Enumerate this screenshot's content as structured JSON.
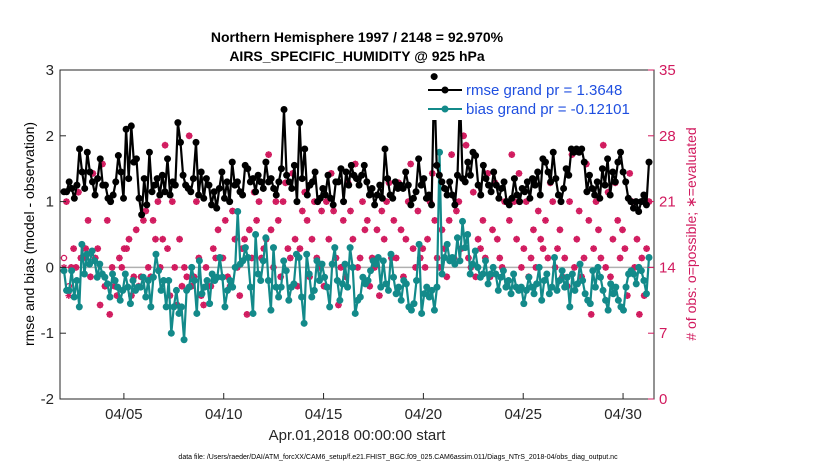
{
  "chart_data": {
    "type": "line",
    "title": "Northern Hemisphere 1997 / 2148 = 92.970%",
    "subtitle": "AIRS_SPECIFIC_HUMIDITY @ 925 hPa",
    "xlabel": "Apr.01,2018 00:00:00 start",
    "ylabel": "rmse and bias (model - observation)",
    "y2label": "# of obs: o=possible; ∗=evaluated",
    "xlim": [
      0.8,
      30.55
    ],
    "ylim": [
      -2,
      3
    ],
    "y2lim": [
      0,
      35
    ],
    "xticks": [
      4,
      9,
      14,
      19,
      24,
      29
    ],
    "xtick_labels": [
      "04/05",
      "04/10",
      "04/15",
      "04/20",
      "04/25",
      "04/30"
    ],
    "yticks": [
      -2,
      -1,
      0,
      1,
      2,
      3
    ],
    "y2ticks": [
      0,
      7,
      14,
      21,
      28,
      35
    ],
    "reference_line": 0,
    "footer": "data file: /Users/raeder/DAI/ATM_forcXX/CAM6_setup/f.e21.FHIST_BGC.f09_025.CAM6assim.011/Diags_NTrS_2018-04/obs_diag_output.nc",
    "series": [
      {
        "name": "rmse",
        "legend_label": "rmse grand pr = 1.3648",
        "color": "#000000",
        "axis": "left",
        "values": [
          1.15,
          1.15,
          1.3,
          1.2,
          1.05,
          1.25,
          1.8,
          1.45,
          1.2,
          1.75,
          1.45,
          1.3,
          1.1,
          1.35,
          1.65,
          1.25,
          1.25,
          1.05,
          1.0,
          1.1,
          1.3,
          1.7,
          1.45,
          1.05,
          2.1,
          1.35,
          2.15,
          1.6,
          1.65,
          1.05,
          0.8,
          1.35,
          0.95,
          1.75,
          1.15,
          1.25,
          1.35,
          1.1,
          1.4,
          1.15,
          1.65,
          1.1,
          1.3,
          1.25,
          2.2,
          1.9,
          1.4,
          1.25,
          1.2,
          1.15,
          1.35,
          1.9,
          1.1,
          1.45,
          1.05,
          1.35,
          1.25,
          0.95,
          1.15,
          0.9,
          1.2,
          1.45,
          1.05,
          1.3,
          1.0,
          1.6,
          1.25,
          1.3,
          1.15,
          1.1,
          1.55,
          1.5,
          1.3,
          1.35,
          1.15,
          1.4,
          1.3,
          1.2,
          1.6,
          1.3,
          1.35,
          1.2,
          1.1,
          1.3,
          1.5,
          2.4,
          1.4,
          1.3,
          1.2,
          1.55,
          1.0,
          2.2,
          1.35,
          1.8,
          1.1,
          1.25,
          1.3,
          1.45,
          1.0,
          1.05,
          1.2,
          1.1,
          1.4,
          1.05,
          0.95,
          1.3,
          1.3,
          1.5,
          1.0,
          1.45,
          1.25,
          1.55,
          1.4,
          1.35,
          1.25,
          1.4,
          1.55,
          1.3,
          1.1,
          1.2,
          0.95,
          1.1,
          1.25,
          1.05,
          1.8,
          1.35,
          1.1,
          1.05,
          1.3,
          1.2,
          1.25,
          1.2,
          1.45,
          1.25,
          0.95,
          1.05,
          1.15,
          1.65,
          1.25,
          1.35,
          1.05,
          1.1,
          0.95,
          2.9,
          1.55,
          1.4,
          1.3,
          1.2,
          1.1,
          1.3,
          1.1,
          0.95,
          1.4,
          2.6,
          1.35,
          1.3,
          1.6,
          1.4,
          1.75,
          1.7,
          1.25,
          1.1,
          1.55,
          1.35,
          1.25,
          1.15,
          1.45,
          1.25,
          1.05,
          1.2,
          1.3,
          1.0,
          0.95,
          1.05,
          1.35,
          1.1,
          1.0,
          1.2,
          1.15,
          1.3,
          1.05,
          1.35,
          1.25,
          1.45,
          1.1,
          1.65,
          1.6,
          1.45,
          1.3,
          1.75,
          1.35,
          1.1,
          1.0,
          1.2,
          1.5,
          1.4,
          1.8,
          1.75,
          1.8,
          1.75,
          1.8,
          1.6,
          1.15,
          1.4,
          1.2,
          1.1,
          1.3,
          1.05,
          1.5,
          1.25,
          1.65,
          1.1,
          1.45,
          1.3,
          1.6,
          1.75,
          1.45,
          1.3,
          1.05,
          1.0,
          0.9,
          1.0,
          0.85,
          1.0,
          1.1,
          0.95,
          1.6
        ]
      },
      {
        "name": "bias",
        "legend_label": "bias grand pr = -0.12101",
        "color": "#138a8a",
        "axis": "left",
        "values": [
          -0.05,
          -0.35,
          -0.35,
          -0.05,
          -0.45,
          -0.2,
          -0.6,
          0.35,
          -0.1,
          0.2,
          0.05,
          0.25,
          0.1,
          -0.15,
          0.05,
          -0.1,
          -0.15,
          -0.25,
          -0.45,
          -0.1,
          -0.2,
          -0.3,
          -0.5,
          -0.35,
          -0.1,
          -0.3,
          -0.55,
          -0.2,
          -0.35,
          -0.3,
          -0.3,
          -0.15,
          -0.45,
          -0.2,
          -0.6,
          -0.15,
          0.2,
          -0.05,
          -0.35,
          -0.2,
          -0.6,
          -0.2,
          -1.0,
          -0.6,
          -0.35,
          -0.7,
          -0.6,
          -1.1,
          -0.35,
          -0.3,
          0.0,
          -0.2,
          -0.7,
          0.1,
          -0.4,
          -0.3,
          -0.2,
          -0.55,
          -0.1,
          -0.2,
          -0.15,
          0.15,
          -0.15,
          -0.6,
          -0.35,
          -0.2,
          -0.3,
          0.0,
          0.85,
          0.05,
          0.1,
          0.3,
          0.15,
          -0.3,
          -0.7,
          0.5,
          -0.1,
          -0.2,
          0.1,
          0.45,
          -0.2,
          -0.65,
          0.3,
          -0.3,
          -0.45,
          -0.3,
          0.1,
          -0.05,
          -0.5,
          -0.3,
          -0.25,
          0.2,
          0.15,
          -0.45,
          -0.85,
          0.2,
          -0.1,
          -0.45,
          -0.35,
          0.1,
          -0.2,
          0.05,
          -0.15,
          -0.3,
          -0.6,
          0.05,
          0.3,
          -0.2,
          -0.5,
          -0.25,
          0.05,
          -0.3,
          0.3,
          0.0,
          -0.7,
          -0.5,
          -0.45,
          -0.15,
          -0.25,
          -0.2,
          -0.05,
          0.1,
          0.05,
          0.15,
          -0.3,
          0.1,
          -0.25,
          -0.35,
          0.2,
          -0.15,
          -0.4,
          -0.3,
          -0.5,
          -0.2,
          -0.25,
          -0.6,
          -0.65,
          -0.55,
          -0.2,
          0.35,
          -0.7,
          -0.4,
          -0.3,
          -0.45,
          -0.35,
          -0.65,
          -0.3,
          1.75,
          -0.1,
          0.15,
          0.35,
          0.1,
          0.15,
          0.05,
          0.45,
          0.1,
          0.7,
          0.3,
          0.5,
          -0.1,
          0.05,
          0.25,
          0.0,
          -0.15,
          -0.1,
          0.1,
          -0.25,
          -0.1,
          0.0,
          -0.1,
          -0.35,
          -0.15,
          -0.05,
          -0.3,
          -0.2,
          -0.4,
          -0.1,
          -0.3,
          -0.35,
          -0.3,
          -0.55,
          -0.35,
          -0.15,
          -0.3,
          -0.4,
          -0.25,
          0.0,
          -0.5,
          -0.2,
          -0.1,
          -0.4,
          -0.3,
          0.15,
          -0.35,
          -0.2,
          -0.05,
          -0.3,
          -0.15,
          -0.6,
          -0.1,
          -0.35,
          -0.25,
          0.05,
          -0.2,
          -0.4,
          -0.5,
          -0.55,
          -0.05,
          -0.3,
          0.0,
          -0.15,
          -0.35,
          -0.5,
          -0.65,
          -0.25,
          -0.4,
          -0.3,
          -0.5,
          -0.6,
          -0.65,
          -0.3,
          -0.1,
          -0.05,
          -0.1,
          -0.25,
          0.0,
          -0.05,
          -0.2,
          -0.4,
          0.15
        ]
      },
      {
        "name": "obs possible",
        "marker": "o",
        "color": "#d11a5e",
        "axis": "right",
        "values": [
          15,
          21,
          12,
          14,
          16,
          14,
          22,
          15,
          15,
          16,
          19,
          13,
          24,
          15,
          16,
          10,
          25,
          12,
          19,
          9,
          14,
          12,
          11,
          15,
          14,
          16,
          16,
          17,
          11,
          13,
          18,
          12,
          13,
          19,
          20,
          14,
          13,
          19,
          17,
          21,
          14,
          17,
          27,
          16,
          11,
          21,
          14,
          10,
          17,
          12,
          14,
          13,
          28,
          12,
          13,
          21,
          15,
          11,
          10,
          14,
          12,
          12,
          16,
          15,
          18,
          15,
          15,
          19,
          13,
          12,
          20,
          17,
          14,
          11,
          16,
          17,
          9,
          18,
          15,
          22,
          19,
          21,
          15,
          16,
          17,
          26,
          18,
          14,
          21,
          19,
          13,
          21,
          23,
          16,
          15,
          24,
          17,
          12,
          16,
          20,
          22,
          19,
          13,
          17,
          21,
          15,
          14,
          20,
          12,
          21,
          17,
          24,
          20,
          15,
          10,
          14,
          19,
          13,
          23,
          20,
          17,
          25,
          14,
          15,
          21,
          18,
          19,
          12,
          15,
          14,
          18,
          11,
          20,
          17,
          21,
          23,
          15,
          19,
          15,
          23,
          18,
          13,
          17,
          21,
          25,
          16,
          14,
          20,
          15,
          16,
          14,
          17,
          21,
          24,
          19,
          15,
          14,
          18,
          16,
          13,
          19,
          26,
          15,
          20,
          21,
          16,
          28,
          27,
          15,
          14,
          22,
          13,
          17,
          16,
          19,
          15,
          24,
          13,
          18,
          23,
          17,
          15,
          14,
          21,
          12,
          19,
          26,
          21,
          17,
          24,
          14,
          16,
          21,
          13,
          15,
          18,
          14,
          20,
          17,
          16,
          19,
          15,
          23,
          21,
          14,
          16,
          18,
          13,
          15,
          12,
          21,
          26,
          14,
          17,
          20,
          13,
          15,
          25,
          19,
          9,
          16,
          21,
          18,
          15,
          27,
          14,
          22,
          13,
          17,
          23,
          19,
          15,
          18,
          16,
          11,
          24,
          21,
          14,
          17,
          9,
          15,
          11,
          16,
          21
        ]
      },
      {
        "name": "obs evaluated",
        "marker": "*",
        "color": "#d11a5e",
        "axis": "right",
        "values": [
          14,
          21,
          11,
          14,
          16,
          14,
          22,
          15,
          15,
          16,
          19,
          13,
          24,
          15,
          16,
          10,
          25,
          12,
          19,
          9,
          14,
          12,
          11,
          15,
          14,
          16,
          16,
          17,
          11,
          13,
          18,
          12,
          13,
          19,
          20,
          14,
          13,
          19,
          17,
          21,
          14,
          17,
          27,
          16,
          11,
          21,
          14,
          10,
          17,
          12,
          14,
          13,
          28,
          12,
          13,
          21,
          15,
          11,
          10,
          14,
          12,
          12,
          16,
          15,
          18,
          15,
          15,
          19,
          13,
          12,
          20,
          17,
          14,
          11,
          16,
          17,
          9,
          18,
          15,
          22,
          19,
          21,
          15,
          16,
          17,
          26,
          18,
          14,
          21,
          19,
          13,
          21,
          23,
          16,
          15,
          24,
          17,
          12,
          16,
          20,
          22,
          19,
          13,
          17,
          21,
          15,
          14,
          20,
          12,
          21,
          17,
          24,
          20,
          15,
          10,
          14,
          19,
          13,
          23,
          20,
          17,
          25,
          14,
          15,
          21,
          18,
          19,
          12,
          15,
          14,
          18,
          11,
          20,
          17,
          21,
          23,
          15,
          19,
          15,
          23,
          18,
          13,
          17,
          21,
          25,
          16,
          14,
          20,
          15,
          16,
          14,
          17,
          21,
          24,
          19,
          15,
          14,
          18,
          16,
          13,
          19,
          26,
          15,
          20,
          21,
          16,
          28,
          27,
          15,
          14,
          22,
          13,
          17,
          16,
          19,
          15,
          24,
          13,
          18,
          23,
          17,
          15,
          14,
          21,
          12,
          19,
          26,
          21,
          17,
          24,
          14,
          16,
          21,
          13,
          15,
          18,
          14,
          20,
          17,
          16,
          19,
          15,
          23,
          21,
          14,
          16,
          18,
          13,
          15,
          12,
          21,
          26,
          14,
          17,
          20,
          13,
          15,
          25,
          19,
          9,
          16,
          21,
          18,
          15,
          27,
          14,
          22,
          13,
          17,
          23,
          19,
          15,
          18,
          16,
          11,
          24,
          21,
          14,
          17,
          9,
          15,
          11,
          16,
          21
        ]
      }
    ]
  }
}
